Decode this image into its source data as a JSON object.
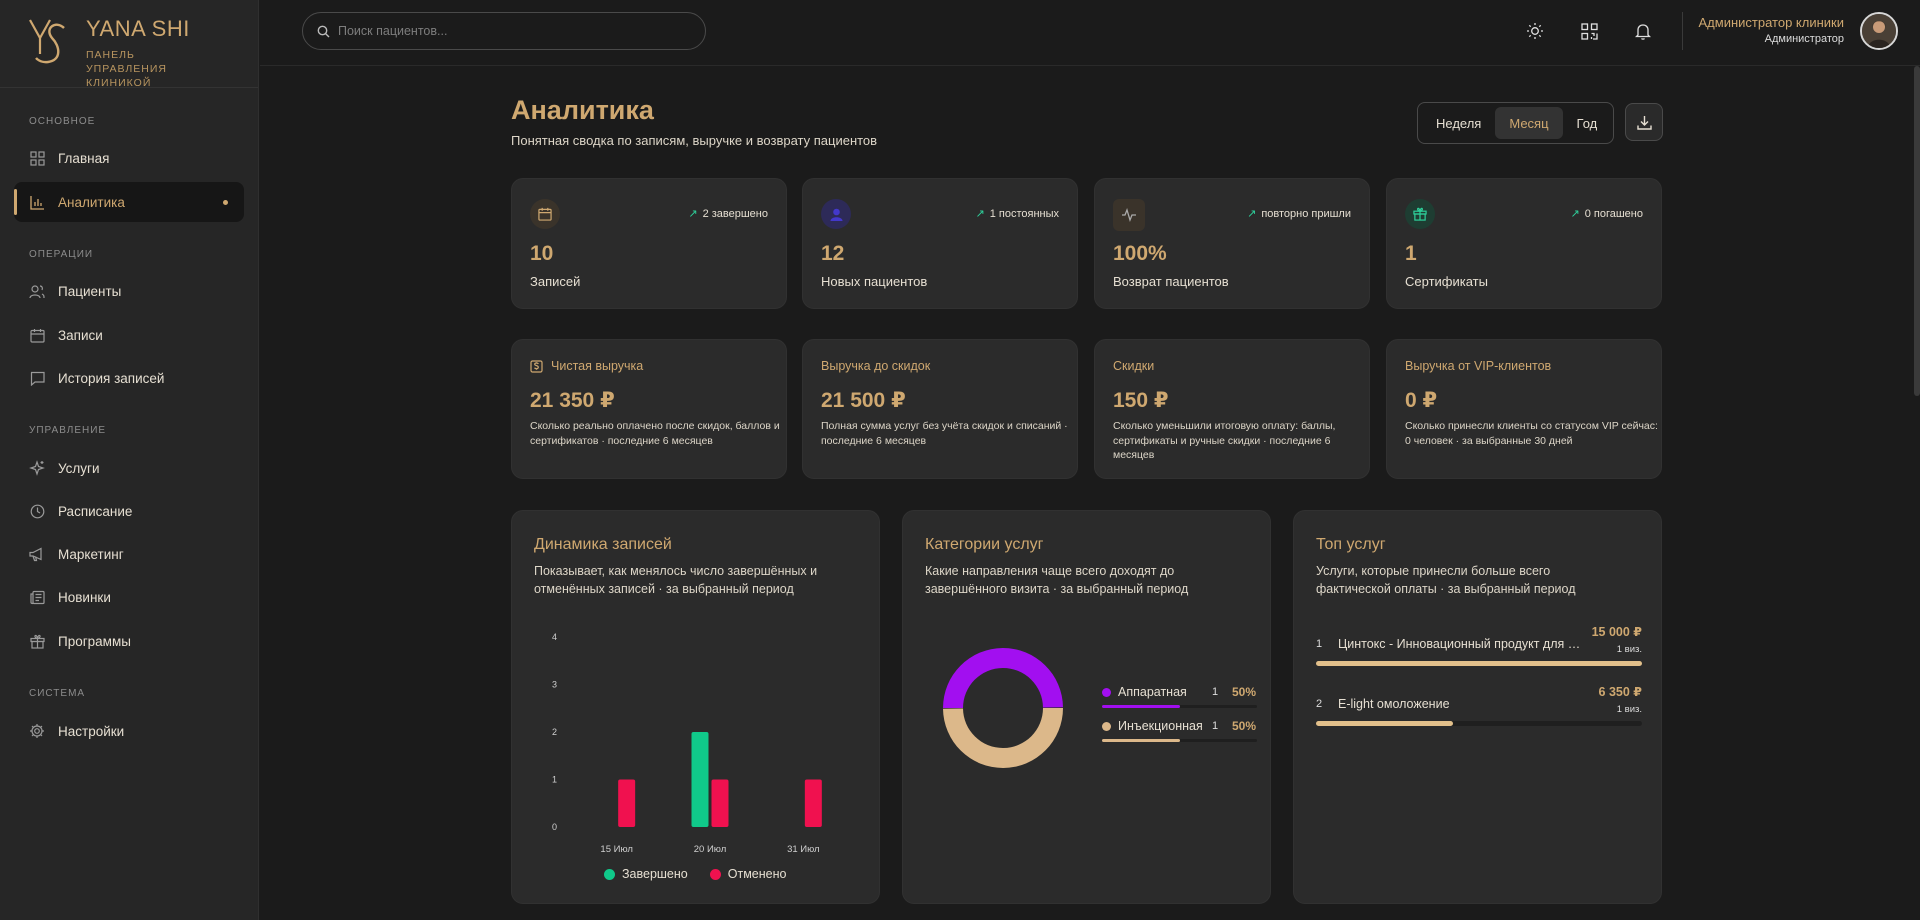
{
  "brand": {
    "title": "YANA SHI",
    "subtitle": "ПАНЕЛЬ УПРАВЛЕНИЯ КЛИНИКОЙ"
  },
  "nav": {
    "sections": [
      "Основное",
      "Операции",
      "Управление",
      "Система"
    ],
    "items": [
      {
        "label": "Главная",
        "icon": "grid-icon"
      },
      {
        "label": "Аналитика",
        "icon": "bar-chart-icon",
        "active": true
      },
      {
        "label": "Пациенты",
        "icon": "users-icon"
      },
      {
        "label": "Записи",
        "icon": "calendar-icon"
      },
      {
        "label": "История записей",
        "icon": "chat-icon"
      },
      {
        "label": "Услуги",
        "icon": "sparkles-icon"
      },
      {
        "label": "Расписание",
        "icon": "clock-icon"
      },
      {
        "label": "Маркетинг",
        "icon": "megaphone-icon"
      },
      {
        "label": "Новинки",
        "icon": "newspaper-icon"
      },
      {
        "label": "Программы",
        "icon": "gift-icon"
      },
      {
        "label": "Настройки",
        "icon": "gear-icon"
      }
    ]
  },
  "search": {
    "placeholder": "Поиск пациентов..."
  },
  "user": {
    "name": "Администратор клиники",
    "role": "Администратор"
  },
  "header": {
    "title": "Аналитика",
    "subtitle": "Понятная сводка по записям, выручке и возврату пациентов"
  },
  "period": {
    "options": [
      "Неделя",
      "Месяц",
      "Год"
    ],
    "selected": "Месяц"
  },
  "kpis": [
    {
      "value": "10",
      "label": "Записей",
      "trend": "2 завершено",
      "icon": "calendar-icon",
      "color": "#cfa870"
    },
    {
      "value": "12",
      "label": "Новых пациентов",
      "trend": "1 постоянных",
      "icon": "user-icon",
      "color": "#4338ca"
    },
    {
      "value": "100%",
      "label": "Возврат пациентов",
      "trend": "повторно пришли",
      "icon": "activity-icon",
      "color": "#cfa870"
    },
    {
      "value": "1",
      "label": "Сертификаты",
      "trend": "0 погашено",
      "icon": "gift-icon",
      "color": "#2ecf9a"
    }
  ],
  "revenue": [
    {
      "title": "Чистая выручка",
      "value": "21 350 ₽",
      "desc": "Сколько реально оплачено после скидок, баллов и сертификатов · последние 6 месяцев",
      "icon": "dollar-doc-icon"
    },
    {
      "title": "Выручка до скидок",
      "value": "21 500 ₽",
      "desc": "Полная сумма услуг без учёта скидок и списаний · последние 6 месяцев"
    },
    {
      "title": "Скидки",
      "value": "150 ₽",
      "desc": "Сколько уменьшили итоговую оплату: баллы, сертификаты и ручные скидки · последние 6 месяцев"
    },
    {
      "title": "Выручка от VIP-клиентов",
      "value": "0 ₽",
      "desc": "Сколько принесли клиенты со статусом VIP сейчас: 0 человек · за выбранные 30 дней"
    }
  ],
  "panels": {
    "dynamics": {
      "title": "Динамика записей",
      "subtitle": "Показывает, как менялось число завершённых и отменённых записей · за выбранный период"
    },
    "categories": {
      "title": "Категории услуг",
      "subtitle": "Какие направления чаще всего доходят до завершённого визита · за выбранный период"
    },
    "top": {
      "title": "Топ услуг",
      "subtitle": "Услуги, которые принесли больше всего фактической оплаты · за выбранный период"
    }
  },
  "chart_data": [
    {
      "type": "bar",
      "categories": [
        "15 Июл",
        "20 Июл",
        "31 Июл"
      ],
      "series": [
        {
          "name": "Завершено",
          "values": [
            0,
            2,
            0
          ],
          "color": "#10c98a"
        },
        {
          "name": "Отменено",
          "values": [
            1,
            1,
            1
          ],
          "color": "#f0114f"
        }
      ],
      "yticks": [
        "0",
        "1",
        "2",
        "3",
        "4"
      ],
      "ylim": [
        0,
        4
      ],
      "legend": "bottom"
    },
    {
      "type": "pie",
      "categories": [
        {
          "name": "Аппаратная",
          "count": "1",
          "percent": "50%",
          "value": 50,
          "color": "#a20ff0"
        },
        {
          "name": "Инъекционная",
          "count": "1",
          "percent": "50%",
          "value": 50,
          "color": "#dcb88a"
        }
      ]
    }
  ],
  "top_services": [
    {
      "rank": "1",
      "name": "Цинтокс - Инновационный продукт для восстановления кожи",
      "sum": "15 000 ₽",
      "visits": "1 виз.",
      "share": 1.0
    },
    {
      "rank": "2",
      "name": "E-light омоложение",
      "sum": "6 350 ₽",
      "visits": "1 виз.",
      "share": 0.42
    }
  ]
}
